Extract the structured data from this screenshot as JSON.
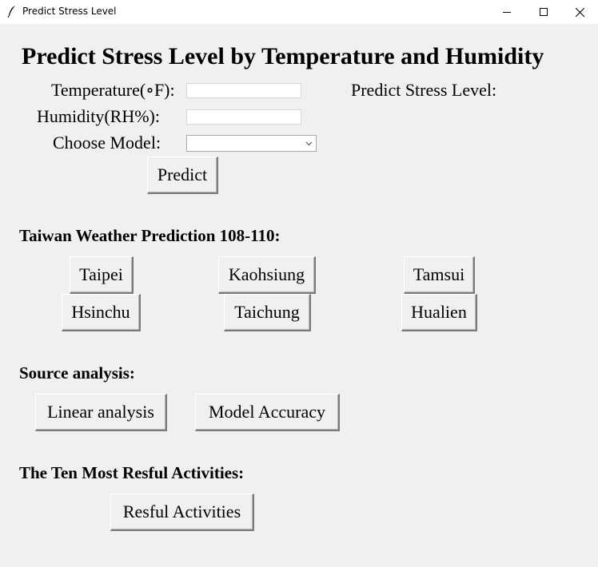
{
  "window": {
    "title": "Predict Stress Level",
    "icon": "feather-icon",
    "controls": [
      "minimize-icon",
      "maximize-icon",
      "close-icon"
    ]
  },
  "main": {
    "heading": "Predict Stress Level by Temperature and Humidity",
    "form": {
      "temperature_label": "Temperature(∘F):",
      "temperature_value": "",
      "humidity_label": "Humidity(RH%):",
      "humidity_value": "",
      "model_label": "Choose Model:",
      "model_selected": "",
      "predict_button": "Predict"
    },
    "result_label": "Predict Stress Level:"
  },
  "weather": {
    "title": "Taiwan Weather Prediction 108-110:",
    "cities": [
      "Taipei",
      "Kaohsiung",
      "Tamsui",
      "Hsinchu",
      "Taichung",
      "Hualien"
    ]
  },
  "source": {
    "title": "Source analysis:",
    "linear_button": "Linear analysis",
    "accuracy_button": "Model Accuracy"
  },
  "activities": {
    "title": "The Ten Most Resful Activities:",
    "button": "Resful Activities"
  }
}
